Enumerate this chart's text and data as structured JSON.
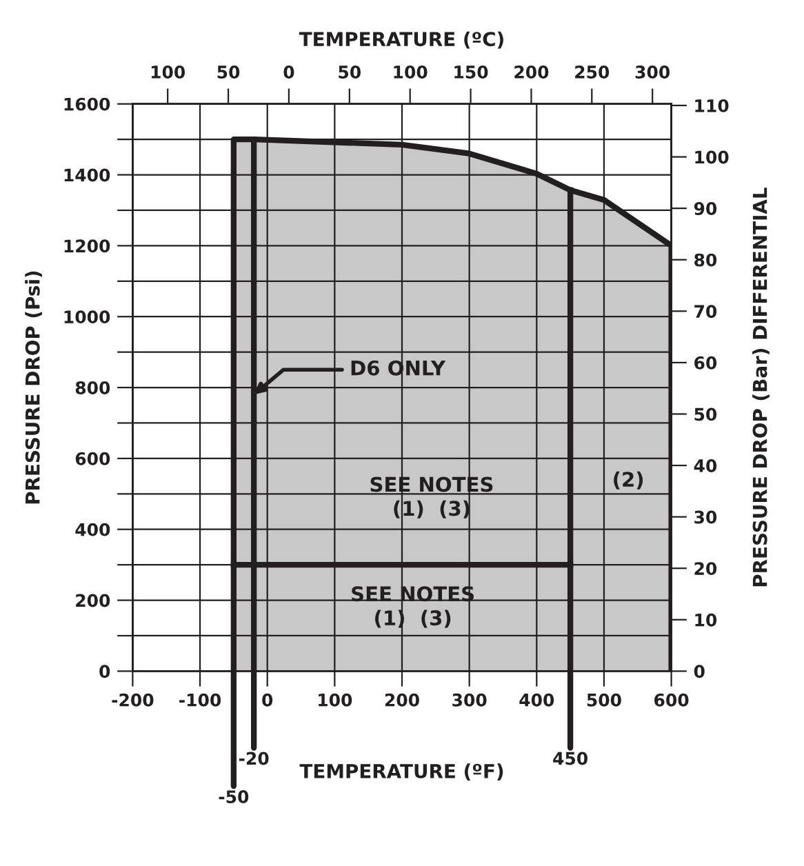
{
  "chart_data": {
    "type": "area",
    "xlabel": "TEMPERATURE (ºF)",
    "x2label": "TEMPERATURE (ºC)",
    "ylabel": "PRESSURE DROP (Psi)",
    "y2label": "PRESSURE DROP (Bar) DIFFERENTIAL",
    "xlim": [
      -200,
      600
    ],
    "xticks": [
      -200,
      -100,
      0,
      100,
      200,
      300,
      400,
      500,
      600
    ],
    "x2lim": [
      -128.9,
      315.6
    ],
    "x2ticks": [
      {
        "value": -100,
        "label": "100"
      },
      {
        "value": -50,
        "label": "50"
      },
      0,
      50,
      100,
      150,
      200,
      250,
      300
    ],
    "ylim": [
      0,
      1600
    ],
    "yticks": [
      0,
      {
        "value": 100,
        "label": null
      },
      200,
      {
        "value": 300,
        "label": null
      },
      400,
      {
        "value": 500,
        "label": null
      },
      600,
      {
        "value": 700,
        "label": null
      },
      800,
      {
        "value": 900,
        "label": null
      },
      1000,
      {
        "value": 1100,
        "label": null
      },
      1200,
      {
        "value": 1300,
        "label": null
      },
      1400,
      {
        "value": 1500,
        "label": null
      },
      1600
    ],
    "y2lim": [
      0,
      110.3
    ],
    "y2ticks": [
      0,
      10,
      20,
      30,
      40,
      50,
      60,
      70,
      80,
      90,
      100,
      110
    ],
    "grid": true,
    "marker": "none",
    "line_style": "solid",
    "series": [
      {
        "color": "#c8c8c8",
        "x": [
          -50,
          -20,
          200,
          300,
          400,
          450,
          500,
          600
        ],
        "values": [
          1500,
          1500,
          1485,
          1460,
          1403,
          1357,
          1329,
          1200
        ]
      },
      {
        "type": "line",
        "color": "#231f20",
        "x": [
          -20,
          -20
        ],
        "values": [
          0,
          1500
        ]
      },
      {
        "type": "line",
        "color": "#231f20",
        "x": [
          450,
          450
        ],
        "values": [
          0,
          1357
        ]
      },
      {
        "type": "line",
        "color": "#231f20",
        "x": [
          -50,
          450
        ],
        "values": [
          300,
          300
        ]
      }
    ],
    "annotations": [
      {
        "text": "D6 ONLY",
        "x": -20,
        "y": 780
      },
      "SEE NOTES\n(1)  (3)",
      "SEE NOTES\n(1)  (3)",
      "(2)",
      {
        "text": "-50",
        "x": -50,
        "y": 0
      },
      {
        "text": "-20",
        "x": -20,
        "y": 0
      },
      {
        "text": "450",
        "x": 450,
        "y": 0
      }
    ]
  }
}
